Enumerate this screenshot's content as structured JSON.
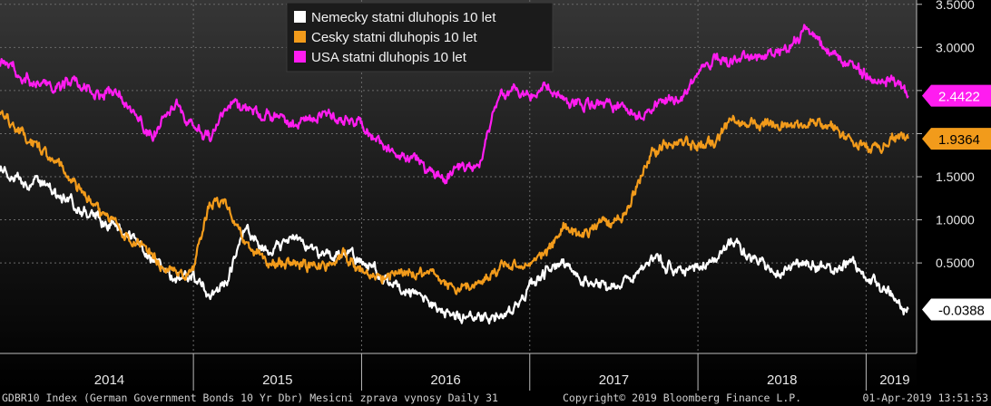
{
  "chart_data": {
    "type": "line",
    "title": "",
    "xlabel": "",
    "ylabel": "",
    "ylim": [
      -0.55,
      3.55
    ],
    "yticks": [
      3.5,
      3.0,
      2.5,
      2.0,
      1.5,
      1.0,
      0.5
    ],
    "ytick_labels": [
      "3.5000",
      "3.0000",
      "2.5000",
      "2.0000",
      "1.5000",
      "1.0000",
      "0.5000"
    ],
    "xlim": [
      2013.85,
      2019.3
    ],
    "x_labels": [
      {
        "text": "2014",
        "x": 2014.5
      },
      {
        "text": "2015",
        "x": 2015.5
      },
      {
        "text": "2016",
        "x": 2016.5
      },
      {
        "text": "2017",
        "x": 2017.5
      },
      {
        "text": "2018",
        "x": 2018.5
      },
      {
        "text": "2019",
        "x": 2019.17
      }
    ],
    "x_year_boundaries": [
      2015,
      2016,
      2017,
      2018,
      2019
    ],
    "grid": true,
    "legend": "top-center",
    "series": [
      {
        "name": "Nemecky statni dluhopis 10 let",
        "color": "#ffffff",
        "last": "-0.0388",
        "x": [
          2013.85,
          2014.0,
          2014.15,
          2014.3,
          2014.45,
          2014.6,
          2014.75,
          2014.9,
          2015.0,
          2015.1,
          2015.2,
          2015.3,
          2015.45,
          2015.6,
          2015.75,
          2015.9,
          2016.0,
          2016.15,
          2016.3,
          2016.45,
          2016.55,
          2016.7,
          2016.85,
          2017.0,
          2017.1,
          2017.2,
          2017.3,
          2017.45,
          2017.6,
          2017.75,
          2017.9,
          2018.0,
          2018.1,
          2018.2,
          2018.3,
          2018.45,
          2018.55,
          2018.65,
          2018.8,
          2018.9,
          2019.0,
          2019.1,
          2019.25
        ],
        "y": [
          1.6,
          1.45,
          1.35,
          1.15,
          1.0,
          0.85,
          0.55,
          0.3,
          0.35,
          0.1,
          0.3,
          0.9,
          0.65,
          0.8,
          0.6,
          0.6,
          0.55,
          0.3,
          0.15,
          0.0,
          -0.1,
          -0.15,
          -0.15,
          0.2,
          0.4,
          0.5,
          0.35,
          0.2,
          0.3,
          0.55,
          0.4,
          0.45,
          0.55,
          0.75,
          0.6,
          0.4,
          0.45,
          0.5,
          0.4,
          0.55,
          0.3,
          0.2,
          -0.04
        ]
      },
      {
        "name": "Cesky statni dluhopis 10 let",
        "color": "#f29b1b",
        "last": "1.9364",
        "x": [
          2013.85,
          2013.9,
          2014.05,
          2014.2,
          2014.35,
          2014.5,
          2014.65,
          2014.8,
          2014.9,
          2015.0,
          2015.1,
          2015.2,
          2015.3,
          2015.4,
          2015.5,
          2015.6,
          2015.75,
          2015.9,
          2016.0,
          2016.1,
          2016.25,
          2016.4,
          2016.55,
          2016.7,
          2016.85,
          2017.0,
          2017.1,
          2017.2,
          2017.3,
          2017.4,
          2017.5,
          2017.6,
          2017.7,
          2017.8,
          2017.9,
          2018.0,
          2018.1,
          2018.2,
          2018.3,
          2018.45,
          2018.55,
          2018.7,
          2018.85,
          2018.95,
          2019.05,
          2019.15,
          2019.25
        ],
        "y": [
          2.25,
          2.15,
          1.9,
          1.6,
          1.3,
          1.0,
          0.75,
          0.5,
          0.4,
          0.4,
          1.2,
          1.15,
          0.75,
          0.6,
          0.45,
          0.5,
          0.45,
          0.6,
          0.4,
          0.3,
          0.4,
          0.35,
          0.2,
          0.25,
          0.5,
          0.45,
          0.6,
          0.9,
          0.8,
          0.95,
          0.95,
          1.2,
          1.7,
          1.9,
          1.9,
          1.85,
          1.9,
          2.15,
          2.1,
          2.1,
          2.1,
          2.15,
          2.0,
          1.9,
          1.8,
          1.95,
          1.94
        ]
      },
      {
        "name": "USA statni dluhopis 10 let",
        "color": "#ff1cf0",
        "last": "2.4422",
        "x": [
          2013.85,
          2014.0,
          2014.15,
          2014.3,
          2014.45,
          2014.55,
          2014.65,
          2014.75,
          2014.9,
          2015.0,
          2015.1,
          2015.2,
          2015.35,
          2015.45,
          2015.6,
          2015.75,
          2015.85,
          2016.0,
          2016.1,
          2016.2,
          2016.3,
          2016.4,
          2016.5,
          2016.6,
          2016.7,
          2016.8,
          2016.9,
          2017.0,
          2017.1,
          2017.2,
          2017.35,
          2017.5,
          2017.65,
          2017.8,
          2017.9,
          2018.0,
          2018.1,
          2018.2,
          2018.3,
          2018.45,
          2018.55,
          2018.65,
          2018.75,
          2018.85,
          2018.95,
          2019.05,
          2019.15,
          2019.25
        ],
        "y": [
          2.8,
          2.65,
          2.55,
          2.6,
          2.45,
          2.5,
          2.25,
          1.95,
          2.35,
          2.1,
          1.95,
          2.35,
          2.25,
          2.2,
          2.1,
          2.25,
          2.2,
          2.1,
          1.9,
          1.75,
          1.75,
          1.55,
          1.5,
          1.6,
          1.6,
          2.35,
          2.5,
          2.45,
          2.55,
          2.4,
          2.35,
          2.3,
          2.2,
          2.4,
          2.4,
          2.7,
          2.85,
          2.85,
          2.9,
          2.95,
          3.0,
          3.25,
          3.0,
          2.85,
          2.75,
          2.6,
          2.65,
          2.44
        ]
      }
    ]
  },
  "footer": {
    "left": "GDBR10 Index (German Government Bonds 10 Yr Dbr) Mesicni zprava vynosy  Daily 31",
    "center": "Copyright© 2019 Bloomberg Finance L.P.",
    "right": "01-Apr-2019 13:51:53"
  }
}
